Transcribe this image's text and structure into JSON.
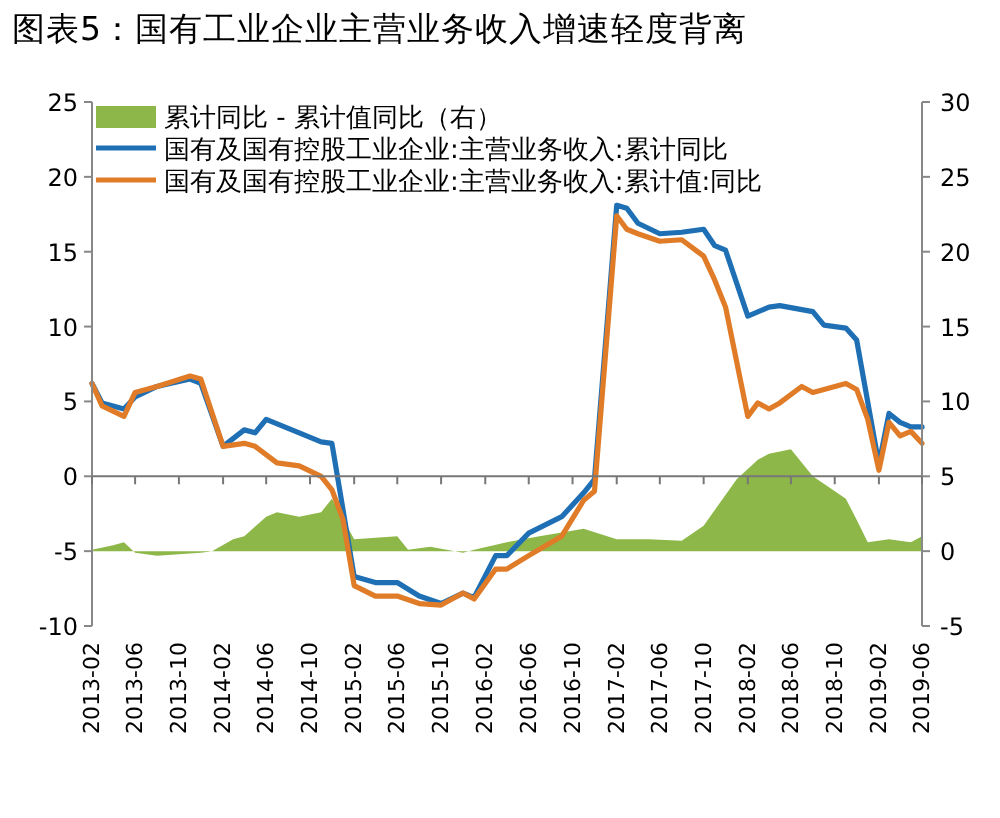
{
  "chart_data": {
    "type": "line",
    "title": "图表5：国有工业企业主营业务收入增速轻度背离",
    "xlim": [
      "2013-02",
      "2019-06"
    ],
    "xticks": [
      "2013-02",
      "2013-06",
      "2013-10",
      "2014-02",
      "2014-06",
      "2014-10",
      "2015-02",
      "2015-06",
      "2015-10",
      "2016-02",
      "2016-06",
      "2016-10",
      "2017-02",
      "2017-06",
      "2017-10",
      "2018-02",
      "2018-06",
      "2018-10",
      "2019-02",
      "2019-06"
    ],
    "ylim": [
      -10,
      25
    ],
    "yticks": [
      -10,
      -5,
      0,
      5,
      10,
      15,
      20,
      25
    ],
    "y2lim": [
      -5,
      30
    ],
    "y2ticks": [
      -5,
      0,
      5,
      10,
      15,
      20,
      25,
      30
    ],
    "legend": "top left",
    "series": [
      {
        "name": "累计同比 - 累计值同比（右）",
        "type": "area",
        "axis": "y2",
        "color": "#8db849",
        "x": [
          "2013-02",
          "2013-04",
          "2013-05",
          "2013-06",
          "2013-08",
          "2013-12",
          "2014-01",
          "2014-03",
          "2014-04",
          "2014-06",
          "2014-07",
          "2014-09",
          "2014-11",
          "2014-12",
          "2015-02",
          "2015-06",
          "2015-07",
          "2015-09",
          "2015-12",
          "2016-01",
          "2016-04",
          "2016-07",
          "2016-11",
          "2017-02",
          "2017-05",
          "2017-08",
          "2017-10",
          "2018-01",
          "2018-03",
          "2018-04",
          "2018-06",
          "2018-08",
          "2018-11",
          "2018-12",
          "2019-01",
          "2019-03",
          "2019-05",
          "2019-06"
        ],
        "values": [
          0.1,
          0.4,
          0.6,
          -0.1,
          -0.3,
          -0.1,
          0,
          0.8,
          1.0,
          2.3,
          2.6,
          2.3,
          2.6,
          3.5,
          0.8,
          1.0,
          0.1,
          0.3,
          -0.1,
          0.1,
          0.6,
          1.0,
          1.5,
          0.8,
          0.8,
          0.7,
          1.7,
          4.8,
          6.1,
          6.5,
          6.8,
          5.0,
          3.5,
          2.1,
          0.6,
          0.8,
          0.6,
          1.0
        ]
      },
      {
        "name": "国有及国有控股工业企业:主营业务收入:累计同比",
        "type": "line",
        "color": "#1f6fb4",
        "x": [
          "2013-02",
          "2013-03",
          "2013-05",
          "2013-06",
          "2013-08",
          "2013-11",
          "2013-12",
          "2014-02",
          "2014-04",
          "2014-05",
          "2014-06",
          "2014-09",
          "2014-11",
          "2014-12",
          "2015-02",
          "2015-04",
          "2015-06",
          "2015-08",
          "2015-10",
          "2015-12",
          "2016-01",
          "2016-03",
          "2016-04",
          "2016-06",
          "2016-09",
          "2016-11",
          "2016-12",
          "2017-02",
          "2017-03",
          "2017-04",
          "2017-06",
          "2017-08",
          "2017-10",
          "2017-11",
          "2017-12",
          "2018-02",
          "2018-04",
          "2018-05",
          "2018-08",
          "2018-09",
          "2018-11",
          "2018-12",
          "2019-02",
          "2019-03",
          "2019-04",
          "2019-05",
          "2019-06"
        ],
        "values": [
          6.2,
          4.9,
          4.5,
          5.3,
          6.0,
          6.5,
          6.2,
          2.0,
          3.1,
          2.9,
          3.8,
          2.9,
          2.3,
          2.2,
          -6.7,
          -7.1,
          -7.1,
          -8.0,
          -8.5,
          -7.8,
          -8.1,
          -5.3,
          -5.3,
          -3.8,
          -2.7,
          -1.1,
          -0.2,
          18.1,
          17.9,
          16.9,
          16.2,
          16.3,
          16.5,
          15.4,
          15.1,
          10.7,
          11.3,
          11.4,
          11.0,
          10.1,
          9.9,
          9.1,
          0.8,
          4.2,
          3.6,
          3.3,
          3.3
        ]
      },
      {
        "name": "国有及国有控股工业企业:主营业务收入:累计值:同比",
        "type": "line",
        "color": "#e07b28",
        "x": [
          "2013-02",
          "2013-03",
          "2013-05",
          "2013-06",
          "2013-08",
          "2013-11",
          "2013-12",
          "2014-02",
          "2014-04",
          "2014-05",
          "2014-07",
          "2014-09",
          "2014-11",
          "2014-12",
          "2015-01",
          "2015-02",
          "2015-04",
          "2015-06",
          "2015-08",
          "2015-10",
          "2015-12",
          "2016-01",
          "2016-03",
          "2016-04",
          "2016-06",
          "2016-09",
          "2016-11",
          "2016-12",
          "2017-02",
          "2017-03",
          "2017-04",
          "2017-06",
          "2017-08",
          "2017-10",
          "2017-11",
          "2017-12",
          "2018-02",
          "2018-03",
          "2018-04",
          "2018-05",
          "2018-07",
          "2018-08",
          "2018-09",
          "2018-11",
          "2018-12",
          "2019-01",
          "2019-02",
          "2019-03",
          "2019-04",
          "2019-05",
          "2019-06"
        ],
        "values": [
          6.2,
          4.7,
          4.0,
          5.6,
          6.0,
          6.7,
          6.5,
          2.0,
          2.2,
          2.0,
          0.9,
          0.7,
          0,
          -0.9,
          -2.9,
          -7.3,
          -8.0,
          -8.0,
          -8.5,
          -8.6,
          -7.8,
          -8.2,
          -6.2,
          -6.2,
          -5.3,
          -4.0,
          -1.6,
          -1.0,
          17.4,
          16.5,
          16.2,
          15.7,
          15.8,
          14.7,
          13.1,
          11.3,
          4.0,
          4.9,
          4.5,
          4.9,
          6.0,
          5.6,
          5.8,
          6.2,
          5.8,
          3.8,
          0.4,
          3.6,
          2.7,
          3.0,
          2.2
        ]
      }
    ]
  }
}
